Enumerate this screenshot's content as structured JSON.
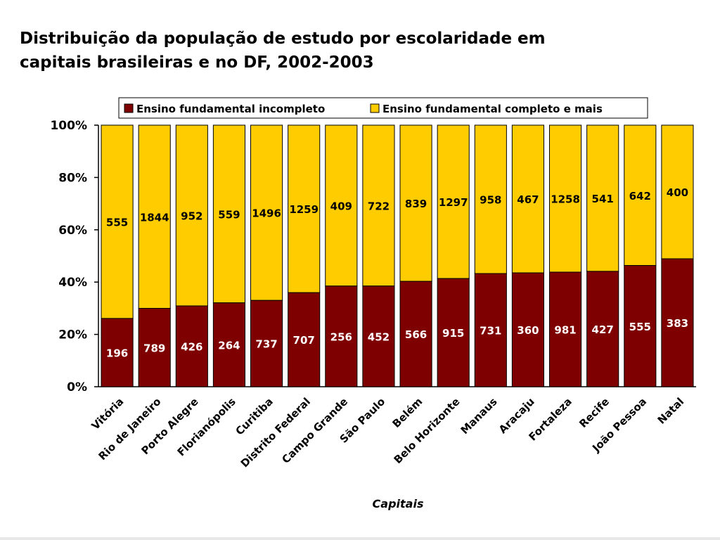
{
  "title": {
    "line1": "Distribuição da população de estudo por escolaridade em",
    "line2": "capitais brasileiras e no DF, 2002-2003"
  },
  "colors": {
    "series1": "#7f0000",
    "series2": "#ffcc00"
  },
  "chart_data": {
    "type": "bar",
    "stacked": "percent",
    "title": "Distribuição da população de estudo por escolaridade em capitais brasileiras e no DF, 2002-2003",
    "xlabel": "Capitais",
    "ylabel": "",
    "ylim": [
      0,
      100
    ],
    "yticks": [
      "0%",
      "20%",
      "40%",
      "60%",
      "80%",
      "100%"
    ],
    "legend_position": "top",
    "grid": false,
    "categories": [
      "Vitória",
      "Rio de Janeiro",
      "Porto Alegre",
      "Florianópolis",
      "Curitiba",
      "Distrito Federal",
      "Campo Grande",
      "São Paulo",
      "Belém",
      "Belo Horizonte",
      "Manaus",
      "Aracaju",
      "Fortaleza",
      "Recife",
      "João Pessoa",
      "Natal"
    ],
    "series": [
      {
        "name": "Ensino fundamental incompleto",
        "values": [
          196,
          789,
          426,
          264,
          737,
          707,
          256,
          452,
          566,
          915,
          731,
          360,
          981,
          427,
          555,
          383
        ]
      },
      {
        "name": "Ensino fundamental completo e mais",
        "values": [
          555,
          1844,
          952,
          559,
          1496,
          1259,
          409,
          722,
          839,
          1297,
          958,
          467,
          1258,
          541,
          642,
          400
        ]
      }
    ]
  }
}
